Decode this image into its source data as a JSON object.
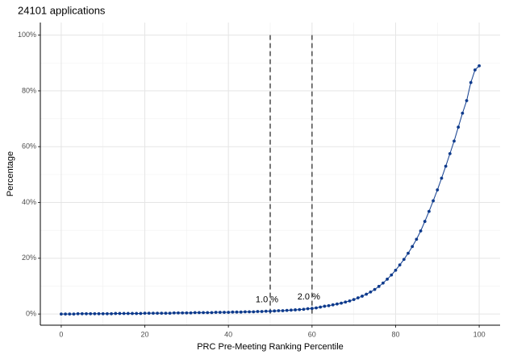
{
  "chart_data": {
    "type": "line",
    "title": "24101 applications",
    "x_label": "PRC Pre-Meeting Ranking Percentile",
    "y_label": "Percentage",
    "x": [
      0,
      1,
      2,
      3,
      4,
      5,
      6,
      7,
      8,
      9,
      10,
      11,
      12,
      13,
      14,
      15,
      16,
      17,
      18,
      19,
      20,
      21,
      22,
      23,
      24,
      25,
      26,
      27,
      28,
      29,
      30,
      31,
      32,
      33,
      34,
      35,
      36,
      37,
      38,
      39,
      40,
      41,
      42,
      43,
      44,
      45,
      46,
      47,
      48,
      49,
      50,
      51,
      52,
      53,
      54,
      55,
      56,
      57,
      58,
      59,
      60,
      61,
      62,
      63,
      64,
      65,
      66,
      67,
      68,
      69,
      70,
      71,
      72,
      73,
      74,
      75,
      76,
      77,
      78,
      79,
      80,
      81,
      82,
      83,
      84,
      85,
      86,
      87,
      88,
      89,
      90,
      91,
      92,
      93,
      94,
      95,
      96,
      97,
      98,
      99,
      100
    ],
    "series": [
      {
        "name": "Percentage",
        "color": "#0d3a8c",
        "values": [
          0,
          0,
          0,
          0,
          0.1,
          0.1,
          0.1,
          0.1,
          0.1,
          0.1,
          0.1,
          0.1,
          0.1,
          0.2,
          0.2,
          0.2,
          0.2,
          0.2,
          0.2,
          0.2,
          0.3,
          0.3,
          0.3,
          0.3,
          0.3,
          0.3,
          0.3,
          0.4,
          0.4,
          0.4,
          0.4,
          0.4,
          0.5,
          0.5,
          0.5,
          0.5,
          0.5,
          0.6,
          0.6,
          0.6,
          0.6,
          0.7,
          0.7,
          0.7,
          0.8,
          0.8,
          0.8,
          0.9,
          0.9,
          1.0,
          1.0,
          1.1,
          1.2,
          1.2,
          1.3,
          1.4,
          1.5,
          1.6,
          1.7,
          1.9,
          2.0,
          2.2,
          2.5,
          2.8,
          3.0,
          3.3,
          3.6,
          3.9,
          4.3,
          4.7,
          5.2,
          5.8,
          6.4,
          7.1,
          7.9,
          8.8,
          9.9,
          11.1,
          12.5,
          14.0,
          15.7,
          17.6,
          19.6,
          21.8,
          24.2,
          26.8,
          29.8,
          33.2,
          36.8,
          40.6,
          44.5,
          48.7,
          53.0,
          57.5,
          62.0,
          67.0,
          72.0,
          76.5,
          83.0,
          87.5,
          89.0
        ]
      }
    ],
    "xlim": [
      -5,
      105
    ],
    "ylim": [
      -4,
      104.5
    ],
    "xticks": [
      0,
      20,
      40,
      60,
      80,
      100
    ],
    "yticks": [
      {
        "value": 0,
        "label": "0%"
      },
      {
        "value": 20,
        "label": "20%"
      },
      {
        "value": 40,
        "label": "40%"
      },
      {
        "value": 60,
        "label": "60%"
      },
      {
        "value": 80,
        "label": "80%"
      },
      {
        "value": 100,
        "label": "100%"
      }
    ],
    "grid": true,
    "vlines": [
      50,
      60
    ],
    "annotations": [
      {
        "text": "1.0 %",
        "x": 50,
        "y": 1.0
      },
      {
        "text": "2.0 %",
        "x": 60,
        "y": 2.0
      }
    ]
  }
}
